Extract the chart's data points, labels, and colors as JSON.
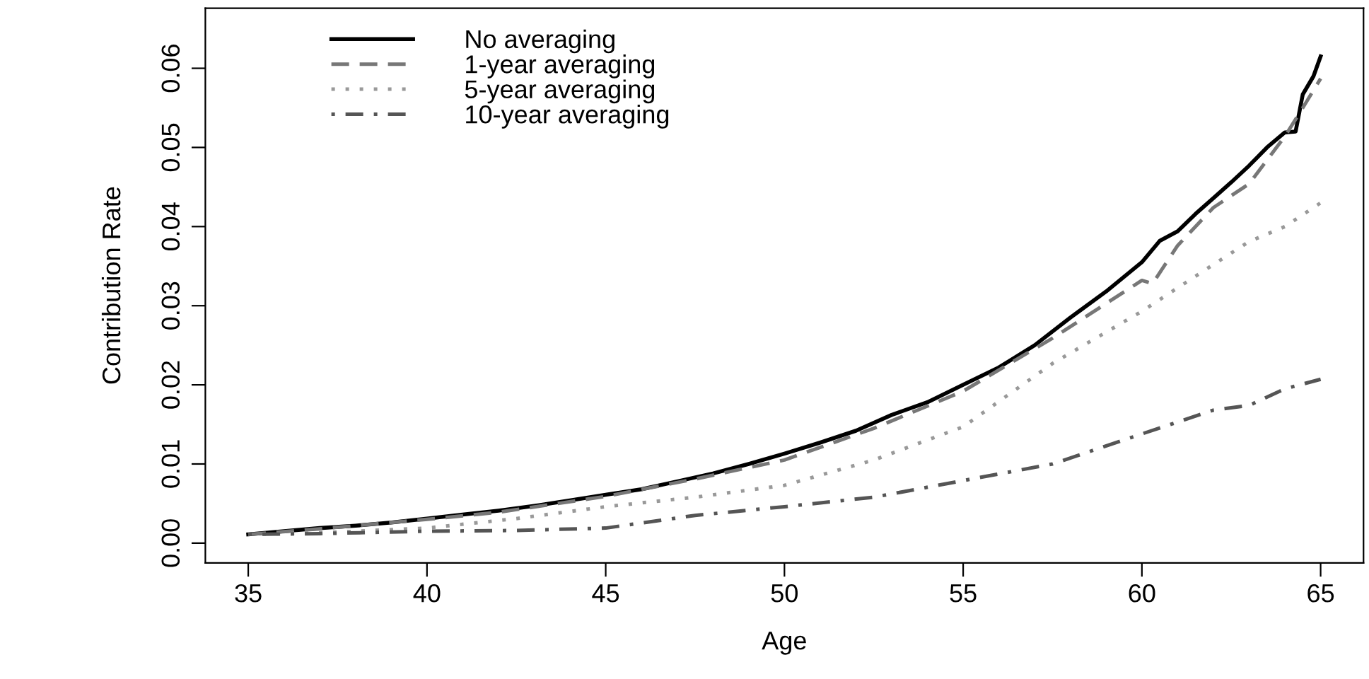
{
  "chart_data": {
    "type": "line",
    "xlabel": "Age",
    "ylabel": "Contribution Rate",
    "xlim": [
      33.8,
      66.2
    ],
    "xticks": [
      35,
      40,
      45,
      50,
      55,
      60,
      65
    ],
    "ylim": [
      -0.0025,
      0.0676
    ],
    "yticks": [
      {
        "value": 0,
        "label": "0.00"
      },
      {
        "value": 0.01,
        "label": "0.01"
      },
      {
        "value": 0.02,
        "label": "0.02"
      },
      {
        "value": 0.03,
        "label": "0.03"
      },
      {
        "value": 0.04,
        "label": "0.04"
      },
      {
        "value": 0.05,
        "label": "0.05"
      },
      {
        "value": 0.06,
        "label": "0.06"
      }
    ],
    "grid": false,
    "legend": "top left",
    "marker": "none",
    "series": [
      {
        "name": "No averaging",
        "color": "#000000",
        "line_style": "solid",
        "x": [
          35,
          36,
          37,
          38,
          39,
          40,
          41,
          42,
          43,
          44,
          45,
          46,
          47,
          48,
          49,
          50,
          51,
          52,
          53,
          54,
          55,
          56,
          57,
          58,
          59,
          60,
          60.5,
          61,
          61.5,
          62,
          62.5,
          63,
          63.5,
          64,
          64.3,
          64.5,
          64.8,
          65
        ],
        "values": [
          0.0011,
          0.0015,
          0.0019,
          0.0022,
          0.0026,
          0.0031,
          0.0036,
          0.0041,
          0.0047,
          0.0054,
          0.0061,
          0.0068,
          0.0078,
          0.0088,
          0.01,
          0.0113,
          0.0127,
          0.0142,
          0.0162,
          0.0178,
          0.02,
          0.0222,
          0.025,
          0.0285,
          0.0318,
          0.0355,
          0.0382,
          0.0394,
          0.0416,
          0.0436,
          0.0456,
          0.0477,
          0.05,
          0.0519,
          0.052,
          0.0567,
          0.059,
          0.0615
        ]
      },
      {
        "name": "1-year averaging",
        "color": "#777777",
        "line_style": "dashed",
        "x": [
          35,
          37,
          40,
          42,
          45,
          47.5,
          50,
          52.5,
          55,
          57.5,
          60,
          60.3,
          61,
          62,
          63,
          64,
          64.5,
          65
        ],
        "values": [
          0.0011,
          0.0018,
          0.003,
          0.0039,
          0.0059,
          0.0081,
          0.0105,
          0.0145,
          0.0192,
          0.0259,
          0.0332,
          0.0328,
          0.0376,
          0.0424,
          0.0454,
          0.0514,
          0.055,
          0.0587
        ]
      },
      {
        "name": "5-year averaging",
        "color": "#999999",
        "line_style": "dotted",
        "x": [
          35,
          37,
          40,
          42.5,
          45,
          47.5,
          50,
          52.5,
          55,
          57.5,
          60,
          62,
          63,
          64,
          65
        ],
        "values": [
          0.0011,
          0.0013,
          0.0019,
          0.0031,
          0.0046,
          0.0058,
          0.0073,
          0.0105,
          0.0147,
          0.0227,
          0.0293,
          0.0352,
          0.0381,
          0.04,
          0.043
        ]
      },
      {
        "name": "10-year averaging",
        "color": "#555555",
        "line_style": "dashdot",
        "x": [
          35,
          37,
          40,
          42.5,
          45,
          47.5,
          50,
          52.5,
          55,
          57.5,
          60,
          62,
          63,
          64,
          65
        ],
        "values": [
          0.0011,
          0.0012,
          0.0015,
          0.0016,
          0.0019,
          0.0035,
          0.0046,
          0.0058,
          0.0079,
          0.01,
          0.0138,
          0.0168,
          0.0174,
          0.0195,
          0.0207
        ]
      }
    ]
  }
}
